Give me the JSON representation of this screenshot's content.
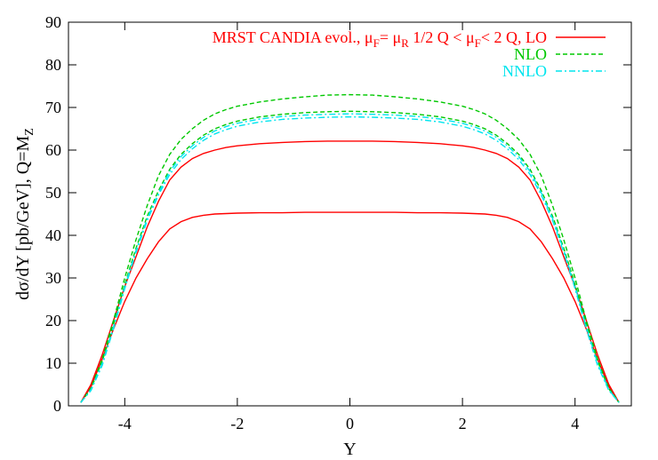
{
  "chart_data": {
    "type": "line",
    "xlabel": "Y",
    "ylabel": "dσ/dY [pb/GeV], Q=M",
    "ylabel_sub": "Z",
    "xlim": [
      -5,
      5
    ],
    "ylim": [
      0,
      90
    ],
    "xticks": [
      -4,
      -2,
      0,
      2,
      4
    ],
    "yticks": [
      0,
      10,
      20,
      30,
      40,
      50,
      60,
      70,
      80,
      90
    ],
    "grid": false,
    "legend_position": "top-right",
    "legend": [
      {
        "id": "lo",
        "label_main": "MRST CANDIA evol., μ",
        "sub1": "F",
        "mid": "= μ",
        "sub2": "R",
        "mid2": " 1/2 Q < μ",
        "sub3": "F",
        "tail": "< 2 Q, LO",
        "color": "#ff0000",
        "dash": "solid"
      },
      {
        "id": "nlo",
        "label": "NLO",
        "color": "#00c800",
        "dash": "dashed"
      },
      {
        "id": "nnlo",
        "label": "NNLO",
        "color": "#00e5ee",
        "dash": "dashdot"
      }
    ],
    "series": [
      {
        "id": "lo-high",
        "band": "LO",
        "color": "#ff0000",
        "dash": "solid",
        "x": [
          -4.78,
          -4.6,
          -4.4,
          -4.2,
          -4.0,
          -3.8,
          -3.6,
          -3.4,
          -3.2,
          -3.0,
          -2.8,
          -2.6,
          -2.4,
          -2.2,
          -2.0,
          -1.6,
          -1.2,
          -0.8,
          -0.4,
          0,
          0.4,
          0.8,
          1.2,
          1.6,
          2.0,
          2.2,
          2.4,
          2.6,
          2.8,
          3.0,
          3.2,
          3.4,
          3.6,
          3.8,
          4.0,
          4.2,
          4.4,
          4.6,
          4.78
        ],
        "y": [
          0.8,
          5.0,
          12,
          20,
          28,
          35,
          42,
          48,
          53,
          56,
          58,
          59.2,
          60,
          60.6,
          61,
          61.5,
          61.8,
          62,
          62.1,
          62.1,
          62.1,
          62,
          61.8,
          61.5,
          61,
          60.6,
          60,
          59.2,
          58,
          56,
          53,
          48,
          42,
          35,
          28,
          20,
          12,
          5.0,
          0.8
        ]
      },
      {
        "id": "lo-low",
        "band": "LO",
        "color": "#ff0000",
        "dash": "solid",
        "x": [
          -4.78,
          -4.6,
          -4.4,
          -4.2,
          -4.0,
          -3.8,
          -3.6,
          -3.4,
          -3.2,
          -3.0,
          -2.8,
          -2.6,
          -2.4,
          -2.2,
          -2.0,
          -1.6,
          -1.2,
          -0.8,
          -0.4,
          0,
          0.4,
          0.8,
          1.2,
          1.6,
          2.0,
          2.2,
          2.4,
          2.6,
          2.8,
          3.0,
          3.2,
          3.4,
          3.6,
          3.8,
          4.0,
          4.2,
          4.4,
          4.6,
          4.78
        ],
        "y": [
          0.8,
          4.5,
          11,
          18,
          24.5,
          30,
          34.5,
          38.5,
          41.5,
          43.2,
          44.2,
          44.7,
          45,
          45.1,
          45.2,
          45.3,
          45.3,
          45.4,
          45.4,
          45.4,
          45.4,
          45.4,
          45.3,
          45.3,
          45.2,
          45.1,
          45,
          44.7,
          44.2,
          43.2,
          41.5,
          38.5,
          34.5,
          30,
          24.5,
          18,
          11,
          4.5,
          0.8
        ]
      },
      {
        "id": "nlo-high",
        "band": "NLO",
        "color": "#00c800",
        "dash": "dashed",
        "x": [
          -4.78,
          -4.6,
          -4.4,
          -4.2,
          -4.0,
          -3.8,
          -3.6,
          -3.4,
          -3.2,
          -3.0,
          -2.8,
          -2.6,
          -2.4,
          -2.2,
          -2.0,
          -1.6,
          -1.2,
          -0.8,
          -0.4,
          0,
          0.4,
          0.8,
          1.2,
          1.6,
          2.0,
          2.2,
          2.4,
          2.6,
          2.8,
          3.0,
          3.2,
          3.4,
          3.6,
          3.8,
          4.0,
          4.2,
          4.4,
          4.6,
          4.78
        ],
        "y": [
          0.8,
          4.2,
          11,
          20,
          30,
          39,
          47,
          54,
          59,
          62.5,
          65,
          67,
          68.5,
          69.5,
          70.3,
          71.3,
          72,
          72.5,
          72.9,
          73,
          72.9,
          72.5,
          72,
          71.3,
          70.3,
          69.5,
          68.5,
          67,
          65,
          62.5,
          59,
          54,
          47,
          39,
          30,
          20,
          11,
          4.2,
          0.8
        ]
      },
      {
        "id": "nlo-low",
        "band": "NLO",
        "color": "#00c800",
        "dash": "dashed",
        "x": [
          -4.78,
          -4.6,
          -4.4,
          -4.2,
          -4.0,
          -3.8,
          -3.6,
          -3.4,
          -3.2,
          -3.0,
          -2.8,
          -2.6,
          -2.4,
          -2.2,
          -2.0,
          -1.6,
          -1.2,
          -0.8,
          -0.4,
          0,
          0.4,
          0.8,
          1.2,
          1.6,
          2.0,
          2.2,
          2.4,
          2.6,
          2.8,
          3.0,
          3.2,
          3.4,
          3.6,
          3.8,
          4.0,
          4.2,
          4.4,
          4.6,
          4.78
        ],
        "y": [
          0.8,
          4.0,
          10.5,
          19,
          28.5,
          37,
          44.5,
          50.5,
          55.5,
          59,
          61.5,
          63.5,
          65,
          66,
          66.8,
          67.8,
          68.4,
          68.8,
          69,
          69.1,
          69,
          68.8,
          68.4,
          67.8,
          66.8,
          66,
          65,
          63.5,
          61.5,
          59,
          55.5,
          50.5,
          44.5,
          37,
          28.5,
          19,
          10.5,
          4.0,
          0.8
        ]
      },
      {
        "id": "nnlo-high",
        "band": "NNLO",
        "color": "#00e5ee",
        "dash": "dashdot",
        "x": [
          -4.78,
          -4.6,
          -4.4,
          -4.2,
          -4.0,
          -3.8,
          -3.6,
          -3.4,
          -3.2,
          -3.0,
          -2.8,
          -2.6,
          -2.4,
          -2.2,
          -2.0,
          -1.6,
          -1.2,
          -0.8,
          -0.4,
          0,
          0.4,
          0.8,
          1.2,
          1.6,
          2.0,
          2.2,
          2.4,
          2.6,
          2.8,
          3.0,
          3.2,
          3.4,
          3.6,
          3.8,
          4.0,
          4.2,
          4.4,
          4.6,
          4.78
        ],
        "y": [
          0.8,
          3.8,
          10,
          18.5,
          28,
          36.5,
          44,
          50,
          55,
          58.5,
          61,
          63,
          64.5,
          65.5,
          66.3,
          67.3,
          67.9,
          68.2,
          68.4,
          68.5,
          68.4,
          68.2,
          67.9,
          67.3,
          66.3,
          65.5,
          64.5,
          63,
          61,
          58.5,
          55,
          50,
          44,
          36.5,
          28,
          18.5,
          10,
          3.8,
          0.8
        ]
      },
      {
        "id": "nnlo-low",
        "band": "NNLO",
        "color": "#00e5ee",
        "dash": "dashdot",
        "x": [
          -4.78,
          -4.6,
          -4.4,
          -4.2,
          -4.0,
          -3.8,
          -3.6,
          -3.4,
          -3.2,
          -3.0,
          -2.8,
          -2.6,
          -2.4,
          -2.2,
          -2.0,
          -1.6,
          -1.2,
          -0.8,
          -0.4,
          0,
          0.4,
          0.8,
          1.2,
          1.6,
          2.0,
          2.2,
          2.4,
          2.6,
          2.8,
          3.0,
          3.2,
          3.4,
          3.6,
          3.8,
          4.0,
          4.2,
          4.4,
          4.6,
          4.78
        ],
        "y": [
          0.8,
          3.6,
          9.5,
          18,
          27.5,
          36,
          43.5,
          49.5,
          54.3,
          57.8,
          60.3,
          62.3,
          63.8,
          64.8,
          65.6,
          66.6,
          67.2,
          67.5,
          67.7,
          67.8,
          67.7,
          67.5,
          67.2,
          66.6,
          65.6,
          64.8,
          63.8,
          62.3,
          60.3,
          57.8,
          54.3,
          49.5,
          43.5,
          36,
          27.5,
          18,
          9.5,
          3.6,
          0.8
        ]
      }
    ]
  }
}
